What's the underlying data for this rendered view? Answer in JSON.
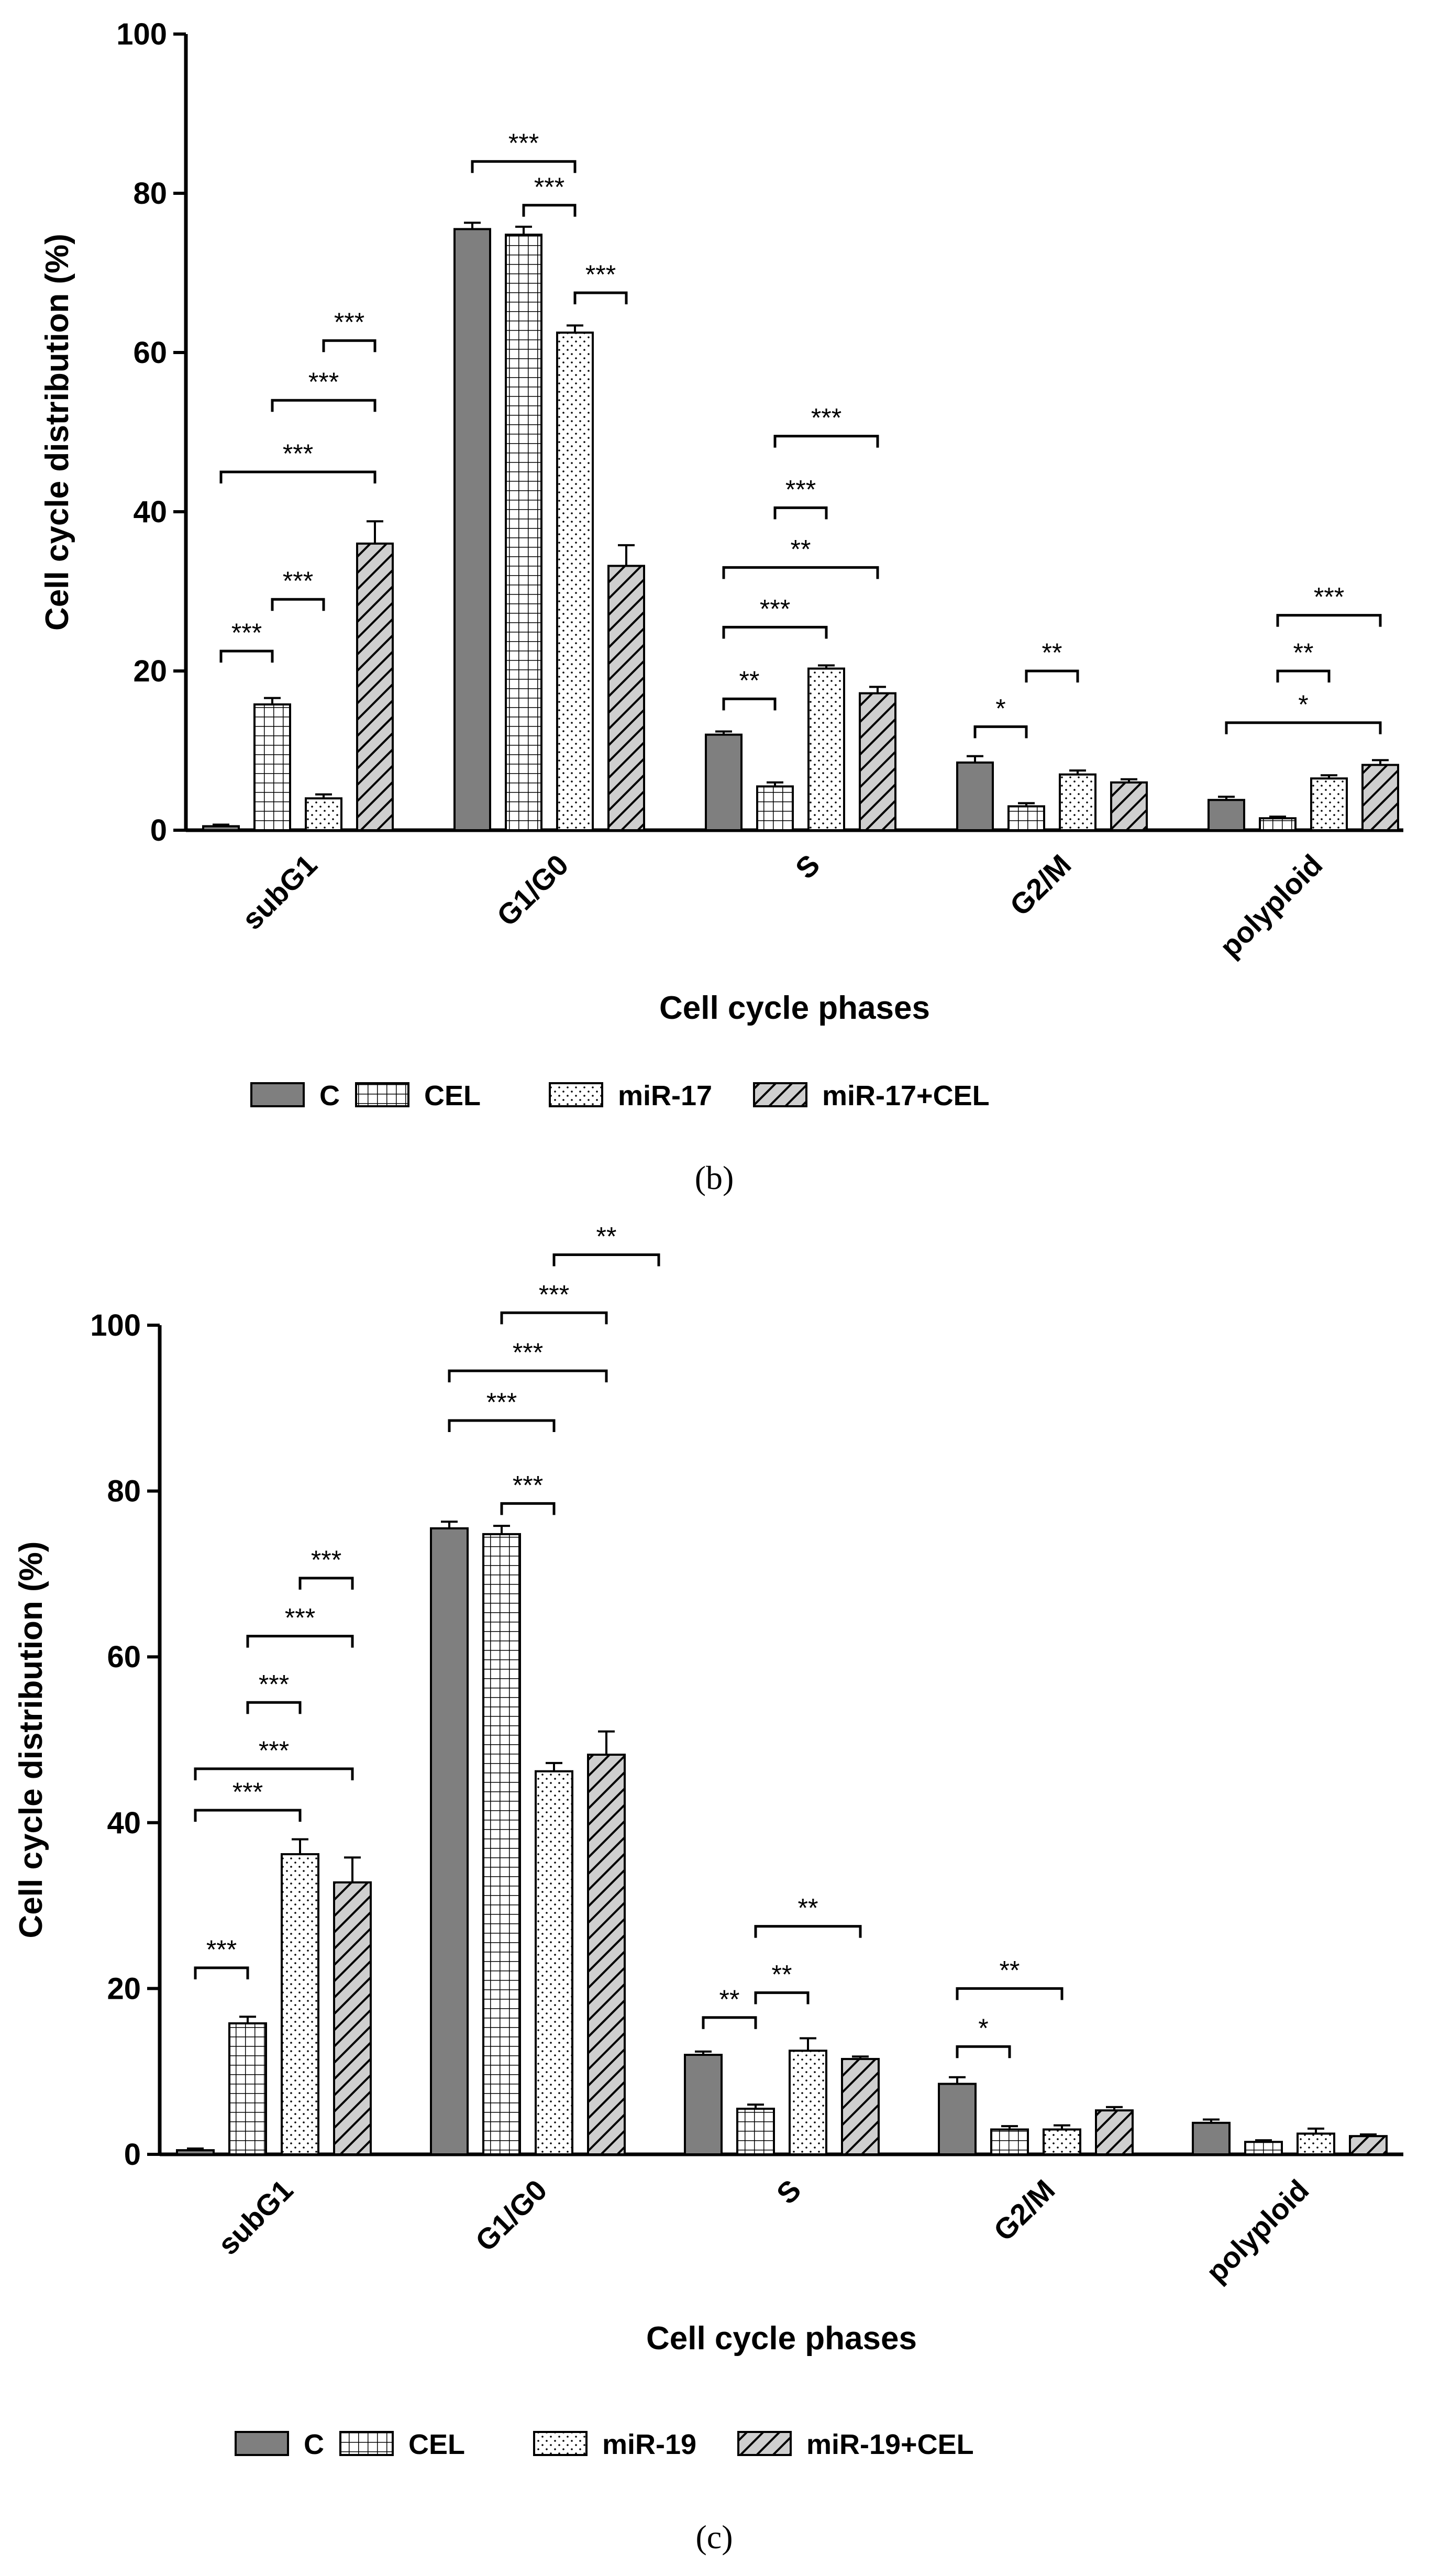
{
  "chart_data": [
    {
      "type": "bar",
      "panel_label": "(b)",
      "xlabel": "Cell cycle phases",
      "ylabel": "Cell cycle distribution (%)",
      "ylim": [
        0,
        100
      ],
      "yticks": [
        "0",
        "20",
        "40",
        "60",
        "80",
        "100"
      ],
      "categories": [
        "subG1",
        "G1/G0",
        "S",
        "G2/M",
        "polyploid"
      ],
      "legend_position": "bottom",
      "series": [
        {
          "name": "C",
          "pattern": "solid",
          "values": [
            0.5,
            75.5,
            12.0,
            8.5,
            3.8
          ],
          "errors": [
            0.2,
            0.8,
            0.4,
            0.8,
            0.4
          ]
        },
        {
          "name": "CEL",
          "pattern": "grid",
          "values": [
            15.8,
            74.8,
            5.5,
            3.0,
            1.5
          ],
          "errors": [
            0.8,
            1.0,
            0.5,
            0.4,
            0.2
          ]
        },
        {
          "name": "miR-17",
          "pattern": "dots",
          "values": [
            4.0,
            62.5,
            20.3,
            7.0,
            6.5
          ],
          "errors": [
            0.5,
            0.9,
            0.4,
            0.5,
            0.4
          ]
        },
        {
          "name": "miR-17+CEL",
          "pattern": "hatch",
          "values": [
            36.0,
            33.2,
            17.2,
            6.0,
            8.2
          ],
          "errors": [
            2.8,
            2.6,
            0.8,
            0.4,
            0.6
          ]
        }
      ],
      "significance": [
        {
          "category": 0,
          "from": 0,
          "to": 1,
          "label": "***",
          "y": 22.5
        },
        {
          "category": 0,
          "from": 1,
          "to": 2,
          "label": "***",
          "y": 29
        },
        {
          "category": 0,
          "from": 0,
          "to": 3,
          "label": "***",
          "y": 45
        },
        {
          "category": 0,
          "from": 1,
          "to": 3,
          "label": "***",
          "y": 54
        },
        {
          "category": 0,
          "from": 2,
          "to": 3,
          "label": "***",
          "y": 61.5
        },
        {
          "category": 1,
          "from": 0,
          "to": 2,
          "label": "***",
          "y": 84
        },
        {
          "category": 1,
          "from": 1,
          "to": 2,
          "label": "***",
          "y": 78.5
        },
        {
          "category": 1,
          "from": 2,
          "to": 3,
          "label": "***",
          "y": 67.5
        },
        {
          "category": 2,
          "from": 0,
          "to": 1,
          "label": "**",
          "y": 16.5
        },
        {
          "category": 2,
          "from": 0,
          "to": 2,
          "label": "***",
          "y": 25.5
        },
        {
          "category": 2,
          "from": 0,
          "to": 3,
          "label": "**",
          "y": 33
        },
        {
          "category": 2,
          "from": 1,
          "to": 2,
          "label": "***",
          "y": 40.5
        },
        {
          "category": 2,
          "from": 1,
          "to": 3,
          "label": "***",
          "y": 49.5
        },
        {
          "category": 3,
          "from": 0,
          "to": 1,
          "label": "*",
          "y": 13
        },
        {
          "category": 3,
          "from": 1,
          "to": 2,
          "label": "**",
          "y": 20
        },
        {
          "category": 4,
          "from": 0,
          "to": 3,
          "label": "*",
          "y": 13.5
        },
        {
          "category": 4,
          "from": 1,
          "to": 2,
          "label": "**",
          "y": 20
        },
        {
          "category": 4,
          "from": 1,
          "to": 3,
          "label": "***",
          "y": 27
        }
      ]
    },
    {
      "type": "bar",
      "panel_label": "(c)",
      "xlabel": "Cell cycle phases",
      "ylabel": "Cell cycle distribution (%)",
      "ylim": [
        0,
        100
      ],
      "yticks": [
        "0",
        "20",
        "40",
        "60",
        "80",
        "100"
      ],
      "categories": [
        "subG1",
        "G1/G0",
        "S",
        "G2/M",
        "polyploid"
      ],
      "legend_position": "bottom",
      "series": [
        {
          "name": "C",
          "pattern": "solid",
          "values": [
            0.5,
            75.5,
            12.0,
            8.5,
            3.8
          ],
          "errors": [
            0.2,
            0.8,
            0.4,
            0.8,
            0.4
          ]
        },
        {
          "name": "CEL",
          "pattern": "grid",
          "values": [
            15.8,
            74.8,
            5.5,
            3.0,
            1.5
          ],
          "errors": [
            0.8,
            1.0,
            0.5,
            0.4,
            0.2
          ]
        },
        {
          "name": "miR-19",
          "pattern": "dots",
          "values": [
            36.2,
            46.2,
            12.5,
            3.0,
            2.5
          ],
          "errors": [
            1.8,
            1.0,
            1.5,
            0.5,
            0.6
          ]
        },
        {
          "name": "miR-19+CEL",
          "pattern": "hatch",
          "values": [
            32.8,
            48.2,
            11.5,
            5.3,
            2.2
          ],
          "errors": [
            3.0,
            2.8,
            0.3,
            0.4,
            0.2
          ]
        }
      ],
      "significance": [
        {
          "category": 0,
          "from": 0,
          "to": 1,
          "label": "***",
          "y": 22.5
        },
        {
          "category": 0,
          "from": 0,
          "to": 2,
          "label": "***",
          "y": 41.5
        },
        {
          "category": 0,
          "from": 0,
          "to": 3,
          "label": "***",
          "y": 46.5
        },
        {
          "category": 0,
          "from": 1,
          "to": 2,
          "label": "***",
          "y": 54.5
        },
        {
          "category": 0,
          "from": 1,
          "to": 3,
          "label": "***",
          "y": 62.5
        },
        {
          "category": 0,
          "from": 2,
          "to": 3,
          "label": "***",
          "y": 69.5
        },
        {
          "category": 1,
          "from": 0,
          "to": 2,
          "label": "***",
          "y": 88.5
        },
        {
          "category": 1,
          "from": 1,
          "to": 2,
          "label": "***",
          "y": 78.5
        },
        {
          "category": 1,
          "from": 0,
          "to": 3,
          "label": "***",
          "y": 94.5
        },
        {
          "category": 1,
          "from": 1,
          "to": 3,
          "label": "***",
          "y": 101.5
        },
        {
          "category": 1,
          "from": 2,
          "to": 4,
          "label": "**",
          "y": 108.5
        },
        {
          "category": 2,
          "from": 0,
          "to": 1,
          "label": "**",
          "y": 16.5
        },
        {
          "category": 2,
          "from": 1,
          "to": 2,
          "label": "**",
          "y": 19.5
        },
        {
          "category": 2,
          "from": 1,
          "to": 3,
          "label": "**",
          "y": 27.5
        },
        {
          "category": 3,
          "from": 0,
          "to": 1,
          "label": "*",
          "y": 13
        },
        {
          "category": 3,
          "from": 0,
          "to": 2,
          "label": "**",
          "y": 20
        }
      ]
    }
  ],
  "colors": {
    "solid_fill": "#7f7f7f",
    "axis": "#000000"
  }
}
